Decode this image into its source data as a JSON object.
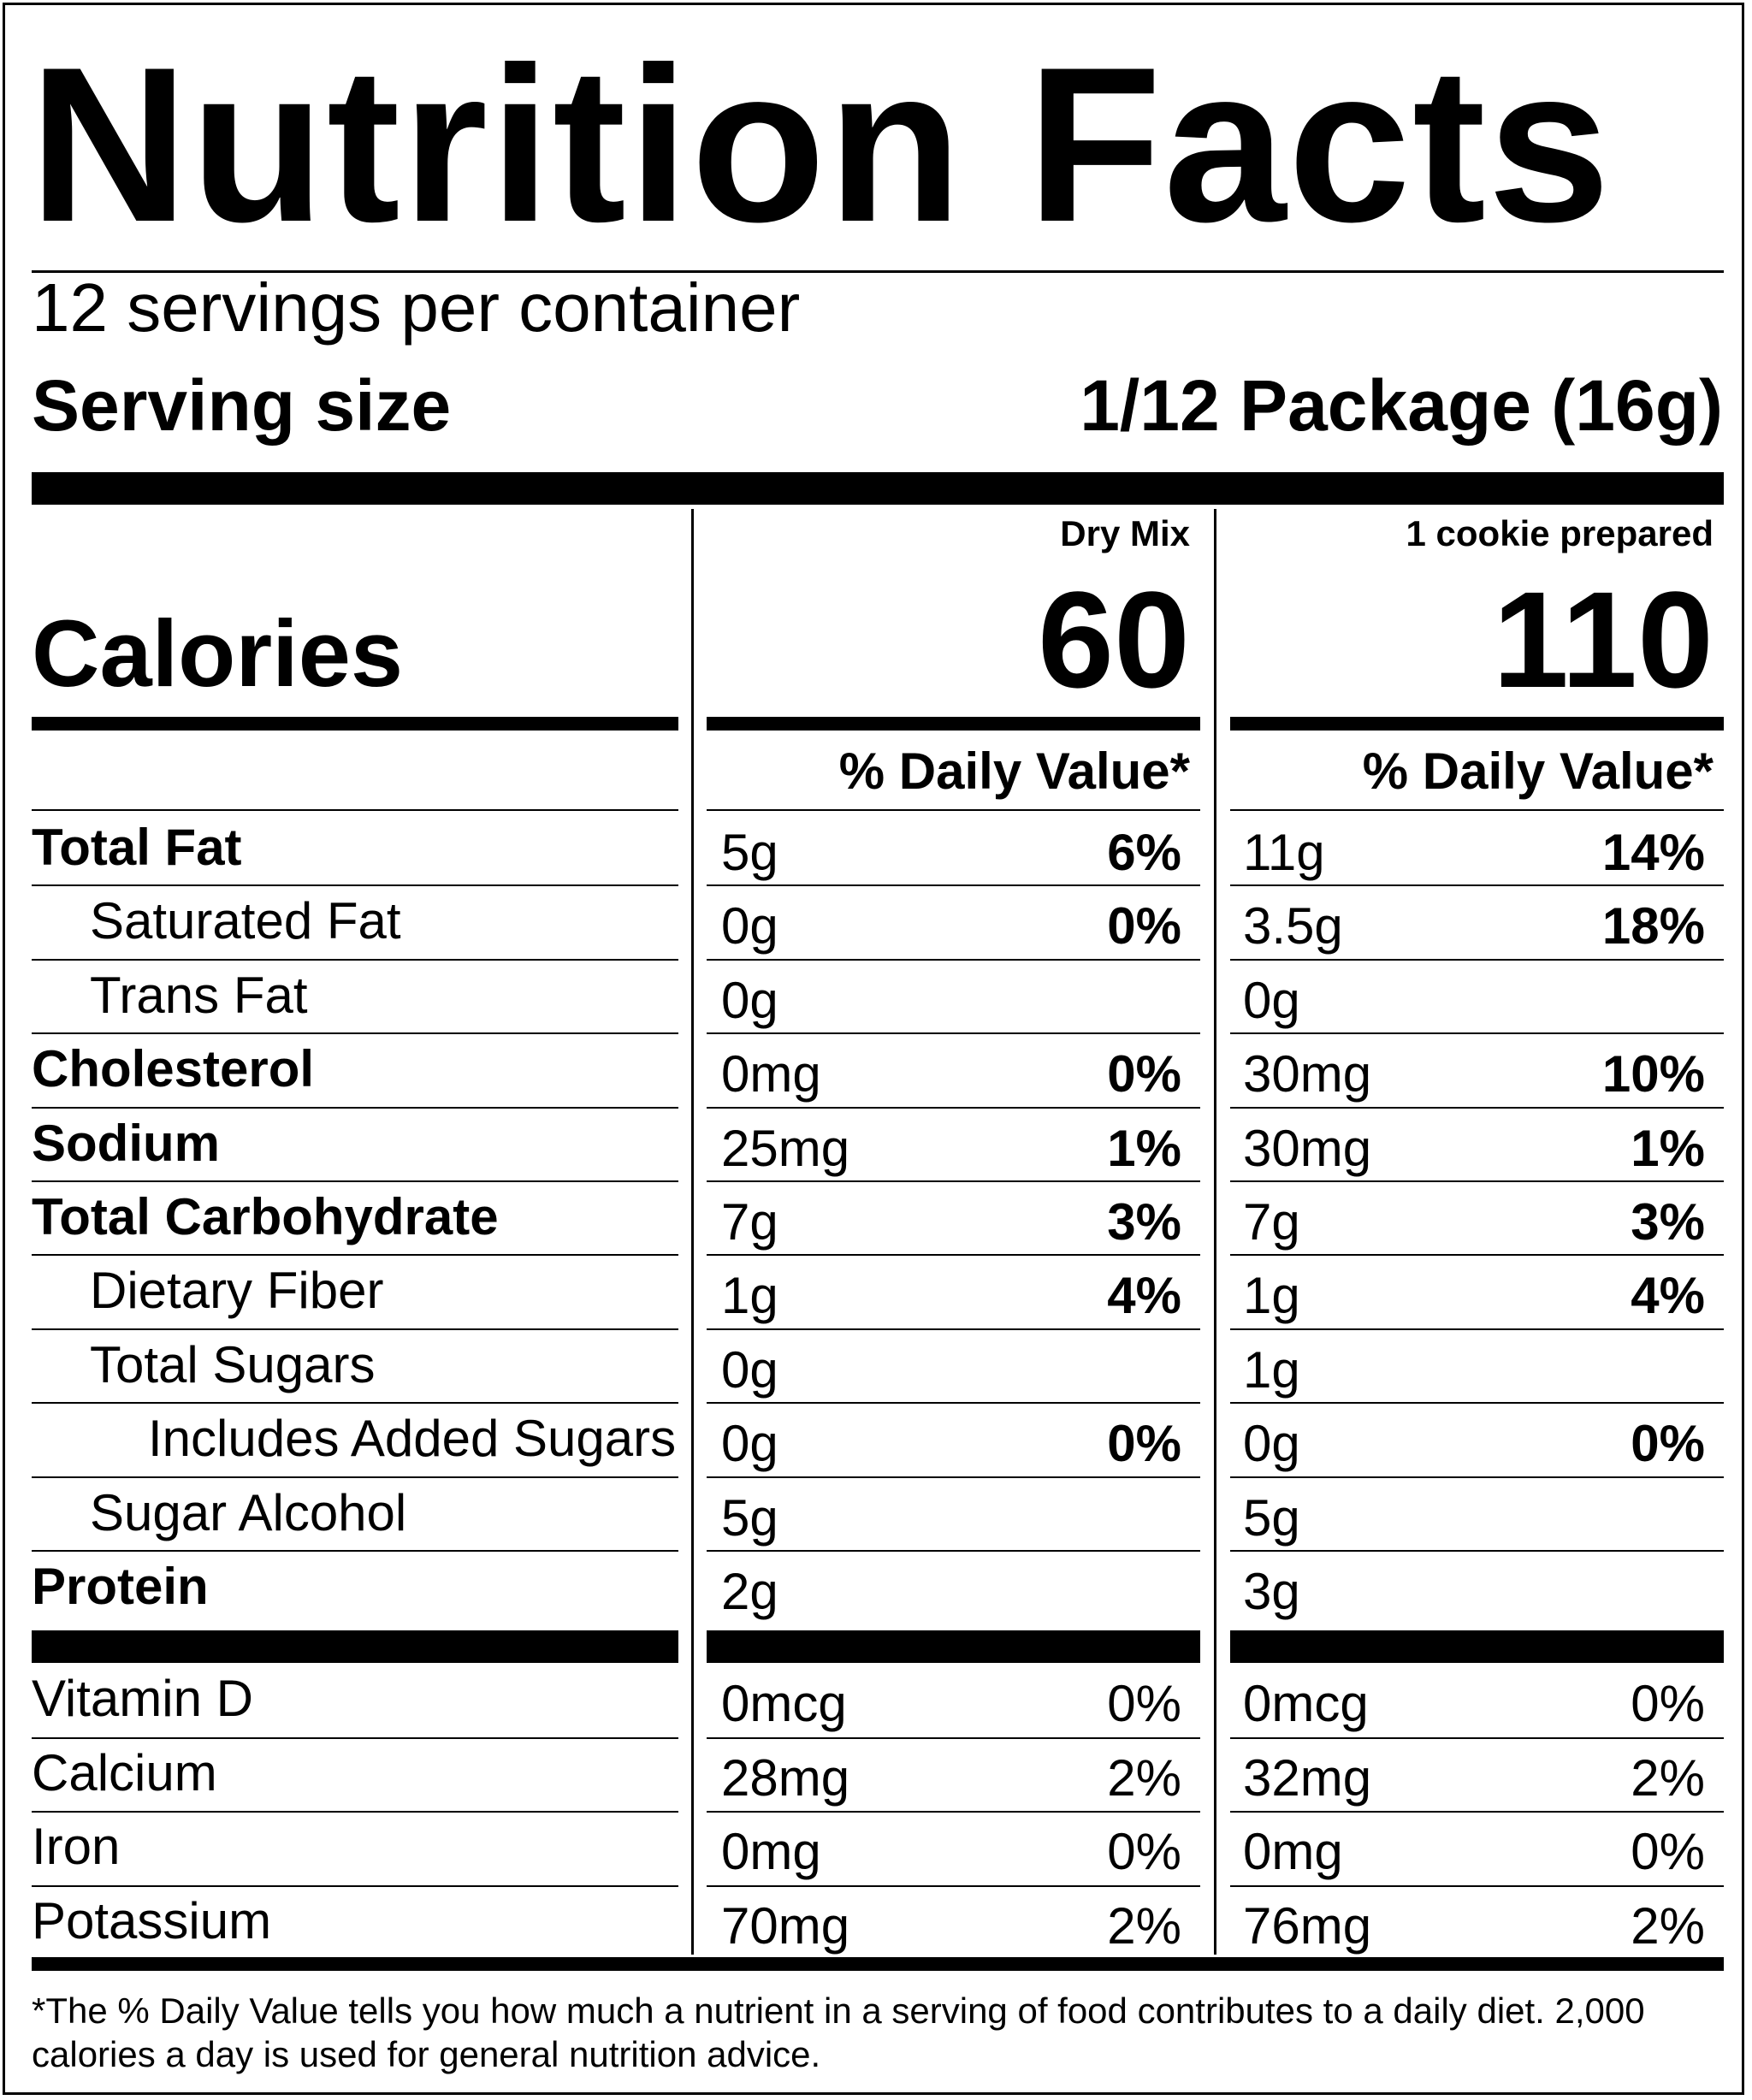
{
  "title": "Nutrition Facts",
  "servings_per_container": "12 servings per container",
  "serving_size": {
    "label": "Serving size",
    "value": "1/12 Package (16g)"
  },
  "columns": [
    {
      "header": "Dry Mix",
      "calories": "60",
      "dv_header": "% Daily Value*"
    },
    {
      "header": "1 cookie prepared",
      "calories": "110",
      "dv_header": "% Daily Value*"
    }
  ],
  "calories_label": "Calories",
  "nutrients": [
    {
      "label": "Total Fat",
      "bold": true,
      "indent": 0,
      "values": [
        {
          "amount": "5g",
          "dv": "6%"
        },
        {
          "amount": "11g",
          "dv": "14%"
        }
      ]
    },
    {
      "label": "Saturated Fat",
      "bold": false,
      "indent": 1,
      "values": [
        {
          "amount": "0g",
          "dv": "0%"
        },
        {
          "amount": "3.5g",
          "dv": "18%"
        }
      ]
    },
    {
      "label": "Trans Fat",
      "bold": false,
      "indent": 1,
      "values": [
        {
          "amount": "0g",
          "dv": ""
        },
        {
          "amount": "0g",
          "dv": ""
        }
      ]
    },
    {
      "label": "Cholesterol",
      "bold": true,
      "indent": 0,
      "values": [
        {
          "amount": "0mg",
          "dv": "0%"
        },
        {
          "amount": "30mg",
          "dv": "10%"
        }
      ]
    },
    {
      "label": "Sodium",
      "bold": true,
      "indent": 0,
      "values": [
        {
          "amount": "25mg",
          "dv": "1%"
        },
        {
          "amount": "30mg",
          "dv": "1%"
        }
      ]
    },
    {
      "label": "Total Carbohydrate",
      "bold": true,
      "indent": 0,
      "values": [
        {
          "amount": "7g",
          "dv": "3%"
        },
        {
          "amount": "7g",
          "dv": "3%"
        }
      ]
    },
    {
      "label": "Dietary Fiber",
      "bold": false,
      "indent": 1,
      "values": [
        {
          "amount": "1g",
          "dv": "4%"
        },
        {
          "amount": "1g",
          "dv": "4%"
        }
      ]
    },
    {
      "label": "Total Sugars",
      "bold": false,
      "indent": 1,
      "values": [
        {
          "amount": "0g",
          "dv": ""
        },
        {
          "amount": "1g",
          "dv": ""
        }
      ]
    },
    {
      "label": "Includes Added Sugars",
      "bold": false,
      "indent": 2,
      "values": [
        {
          "amount": "0g",
          "dv": "0%"
        },
        {
          "amount": "0g",
          "dv": "0%"
        }
      ]
    },
    {
      "label": "Sugar Alcohol",
      "bold": false,
      "indent": 1,
      "values": [
        {
          "amount": "5g",
          "dv": ""
        },
        {
          "amount": "5g",
          "dv": ""
        }
      ]
    },
    {
      "label": "Protein",
      "bold": true,
      "indent": 0,
      "values": [
        {
          "amount": "2g",
          "dv": ""
        },
        {
          "amount": "3g",
          "dv": ""
        }
      ]
    }
  ],
  "vitamins": [
    {
      "label": "Vitamin D",
      "values": [
        {
          "amount": "0mcg",
          "dv": "0%"
        },
        {
          "amount": "0mcg",
          "dv": "0%"
        }
      ]
    },
    {
      "label": "Calcium",
      "values": [
        {
          "amount": "28mg",
          "dv": "2%"
        },
        {
          "amount": "32mg",
          "dv": "2%"
        }
      ]
    },
    {
      "label": "Iron",
      "values": [
        {
          "amount": "0mg",
          "dv": "0%"
        },
        {
          "amount": "0mg",
          "dv": "0%"
        }
      ]
    },
    {
      "label": "Potassium",
      "values": [
        {
          "amount": "70mg",
          "dv": "2%"
        },
        {
          "amount": "76mg",
          "dv": "2%"
        }
      ]
    }
  ],
  "footnote": "*The % Daily Value tells you how much a nutrient in a serving of food contributes to a daily diet. 2,000 calories a day is used for general nutrition advice."
}
